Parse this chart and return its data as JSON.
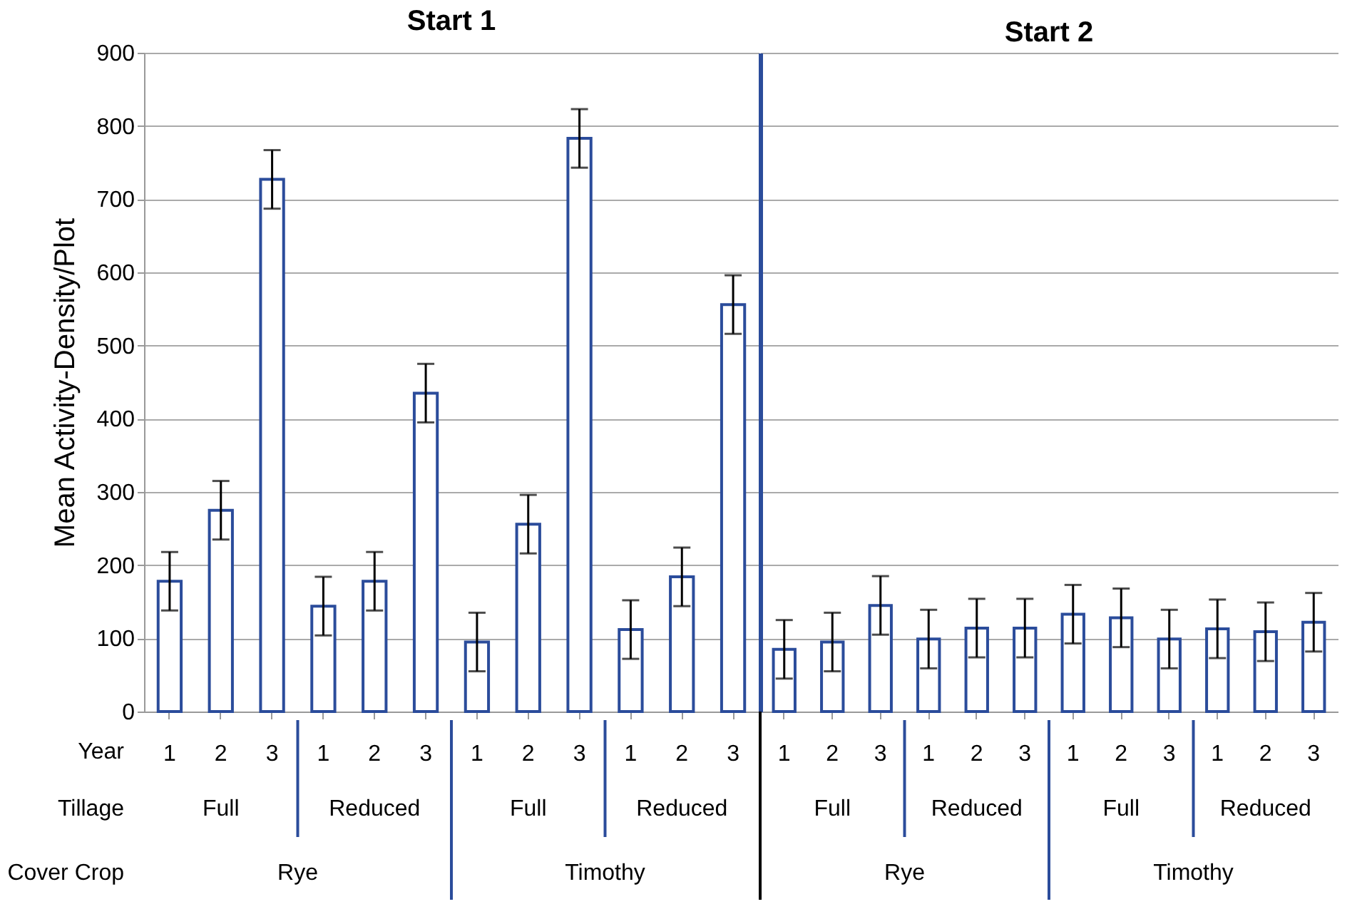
{
  "chart_data": [
    {
      "type": "bar",
      "title": "Start 1",
      "ylabel": "Mean Activity-Density/Plot",
      "categories": [
        "1",
        "2",
        "3",
        "1",
        "2",
        "3",
        "1",
        "2",
        "3",
        "1",
        "2",
        "3"
      ],
      "values": [
        178,
        275,
        727,
        144,
        178,
        435,
        95,
        256,
        783,
        112,
        184,
        556
      ],
      "errors": [
        40,
        40,
        40,
        40,
        40,
        40,
        40,
        40,
        40,
        40,
        40,
        40
      ],
      "color": "#2b4c9b",
      "ylim": [
        0,
        900
      ],
      "yticks": [
        0,
        100,
        200,
        300,
        400,
        500,
        600,
        700,
        800,
        900
      ],
      "grid": "y",
      "annotations": [
        "Year",
        "Tillage",
        "Cover Crop",
        "Full",
        "Reduced",
        "Full",
        "Reduced",
        "Rye",
        "Timothy"
      ]
    },
    {
      "type": "bar",
      "title": "Start 2",
      "categories": [
        "1",
        "2",
        "3",
        "1",
        "2",
        "3",
        "1",
        "2",
        "3",
        "1",
        "2",
        "3"
      ],
      "values": [
        85,
        95,
        145,
        99,
        114,
        114,
        133,
        128,
        99,
        113,
        109,
        122
      ],
      "errors": [
        40,
        40,
        40,
        40,
        40,
        40,
        40,
        40,
        40,
        40,
        40,
        40
      ],
      "color": "#2b4c9b",
      "ylim": [
        0,
        900
      ],
      "yticks": [
        0,
        100,
        200,
        300,
        400,
        500,
        600,
        700,
        800,
        900
      ],
      "grid": "y",
      "tick_labels": "x",
      "annotations": [
        "Full",
        "Reduced",
        "Full",
        "Reduced",
        "Rye",
        "Timothy"
      ]
    }
  ]
}
